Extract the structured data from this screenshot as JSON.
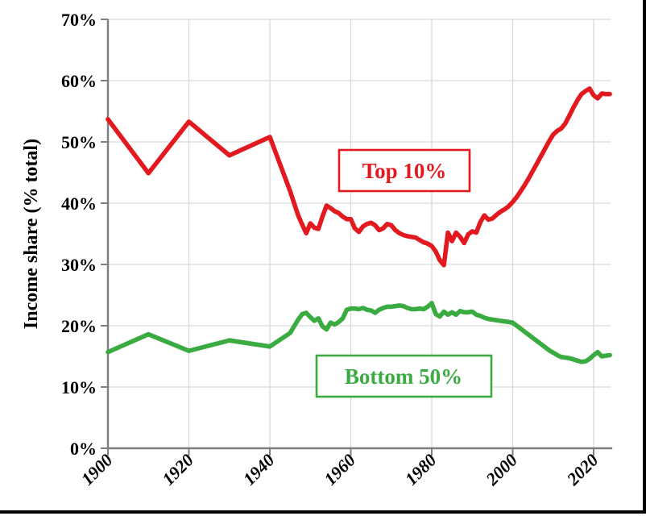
{
  "chart_data": {
    "type": "line",
    "title": "",
    "xlabel": "",
    "ylabel": "Income share (% total)",
    "ylim": [
      0,
      70
    ],
    "xlim": [
      1900,
      2024
    ],
    "grid": true,
    "legend_style": "boxed inline labels",
    "y_ticks": {
      "values": [
        0,
        10,
        20,
        30,
        40,
        50,
        60,
        70
      ],
      "labels": [
        "0%",
        "10%",
        "20%",
        "30%",
        "40%",
        "50%",
        "60%",
        "70%"
      ]
    },
    "x_ticks": {
      "values": [
        1900,
        1920,
        1940,
        1960,
        1980,
        2000,
        2020
      ],
      "labels": [
        "1900",
        "1920",
        "1940",
        "1960",
        "1980",
        "2000",
        "2020"
      ]
    },
    "series": [
      {
        "name": "Top 10%",
        "color": "#e2191f",
        "x": [
          1900,
          1910,
          1920,
          1930,
          1940,
          1945,
          1946,
          1947,
          1948,
          1949,
          1950,
          1951,
          1952,
          1953,
          1954,
          1955,
          1956,
          1957,
          1958,
          1959,
          1960,
          1961,
          1962,
          1963,
          1964,
          1965,
          1966,
          1967,
          1968,
          1969,
          1970,
          1971,
          1972,
          1973,
          1974,
          1975,
          1976,
          1977,
          1978,
          1979,
          1980,
          1981,
          1982,
          1983,
          1984,
          1985,
          1986,
          1987,
          1988,
          1989,
          1990,
          1991,
          1992,
          1993,
          1994,
          1995,
          1996,
          1997,
          1998,
          1999,
          2000,
          2001,
          2002,
          2003,
          2004,
          2005,
          2006,
          2007,
          2008,
          2009,
          2010,
          2011,
          2012,
          2013,
          2014,
          2015,
          2016,
          2017,
          2018,
          2019,
          2020,
          2021,
          2022,
          2023,
          2024
        ],
        "values": [
          53.7,
          44.9,
          53.3,
          47.8,
          50.8,
          42,
          40,
          38,
          36.5,
          35.1,
          36.7,
          36,
          35.8,
          37.8,
          39.6,
          39.2,
          38.7,
          38.4,
          37.8,
          37.4,
          37.4,
          35.9,
          35.3,
          36.2,
          36.6,
          36.8,
          36.4,
          35.6,
          35.9,
          36.6,
          36.4,
          35.6,
          35.1,
          34.8,
          34.6,
          34.5,
          34.4,
          34,
          33.6,
          33.4,
          33,
          32.1,
          30.7,
          29.9,
          35.2,
          33.8,
          35.2,
          34.5,
          33.5,
          34.9,
          35.4,
          35.2,
          36.9,
          38,
          37.3,
          37.5,
          38.1,
          38.6,
          39,
          39.5,
          40.2,
          41,
          42,
          43,
          44.1,
          45.3,
          46.5,
          47.7,
          48.9,
          50.1,
          51.2,
          51.8,
          52.2,
          53,
          54.3,
          55.6,
          56.8,
          57.8,
          58.3,
          58.7,
          57.6,
          57.1,
          57.9,
          57.8,
          57.8
        ]
      },
      {
        "name": "Bottom 50%",
        "color": "#3aab41",
        "x": [
          1900,
          1910,
          1920,
          1930,
          1940,
          1945,
          1946,
          1947,
          1948,
          1949,
          1950,
          1951,
          1952,
          1953,
          1954,
          1955,
          1956,
          1957,
          1958,
          1959,
          1960,
          1961,
          1962,
          1963,
          1964,
          1965,
          1966,
          1967,
          1968,
          1969,
          1970,
          1971,
          1972,
          1973,
          1974,
          1975,
          1976,
          1977,
          1978,
          1979,
          1980,
          1981,
          1982,
          1983,
          1984,
          1985,
          1986,
          1987,
          1988,
          1989,
          1990,
          1991,
          1992,
          1993,
          1994,
          1995,
          1996,
          1997,
          1998,
          1999,
          2000,
          2001,
          2002,
          2003,
          2004,
          2005,
          2006,
          2007,
          2008,
          2009,
          2010,
          2011,
          2012,
          2013,
          2014,
          2015,
          2016,
          2017,
          2018,
          2019,
          2020,
          2021,
          2022,
          2023,
          2024
        ],
        "values": [
          15.7,
          18.6,
          15.9,
          17.6,
          16.6,
          18.8,
          19.9,
          21,
          21.9,
          22.1,
          21.4,
          20.8,
          21.2,
          19.9,
          19.4,
          20.5,
          20.2,
          20.6,
          21.2,
          22.6,
          22.8,
          22.8,
          22.7,
          22.9,
          22.6,
          22.5,
          22.1,
          22.6,
          22.9,
          23.1,
          23.1,
          23.2,
          23.3,
          23.2,
          22.9,
          22.7,
          22.7,
          22.8,
          22.7,
          23.1,
          23.7,
          21.9,
          21.5,
          22.3,
          21.8,
          22.2,
          21.8,
          22.4,
          22.2,
          22.2,
          22.3,
          21.8,
          21.6,
          21.3,
          21.1,
          21,
          20.9,
          20.8,
          20.7,
          20.6,
          20.5,
          20,
          19.5,
          19,
          18.5,
          18,
          17.5,
          17,
          16.5,
          16,
          15.6,
          15.2,
          14.9,
          14.8,
          14.7,
          14.5,
          14.3,
          14.1,
          14.2,
          14.6,
          15.2,
          15.7,
          15,
          15.1,
          15.2
        ]
      }
    ]
  }
}
